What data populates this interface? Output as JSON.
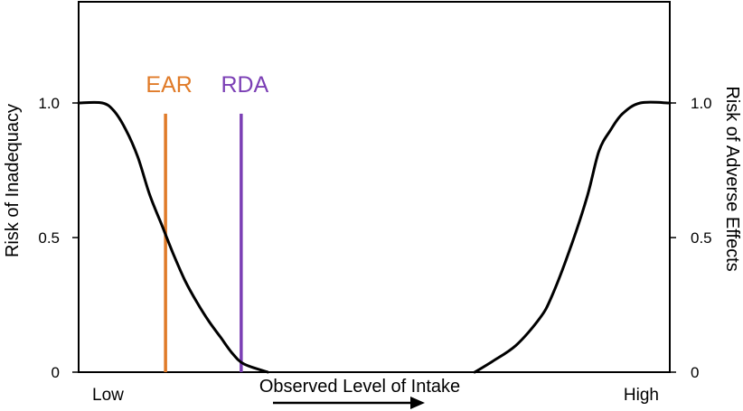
{
  "chart_data": {
    "type": "line",
    "title": "",
    "xlabel": "Observed Level of Intake",
    "x_endpoints": [
      "Low",
      "High"
    ],
    "ylabel_left": "Risk of Inadequacy",
    "ylabel_right": "Risk of Adverse Effects",
    "y_ticks": [
      "0",
      "0.5",
      "1.0"
    ],
    "ylim": [
      0,
      1.0
    ],
    "xlim": [
      0,
      1
    ],
    "grid": false,
    "legend": "none",
    "curve_color": "#000000",
    "series": [
      {
        "values": [
          {
            "x": 0.0,
            "y": 1.0
          },
          {
            "x": 0.04,
            "y": 1.0
          },
          {
            "x": 0.06,
            "y": 0.97
          },
          {
            "x": 0.08,
            "y": 0.9
          },
          {
            "x": 0.1,
            "y": 0.8
          },
          {
            "x": 0.12,
            "y": 0.66
          },
          {
            "x": 0.14,
            "y": 0.55
          },
          {
            "x": 0.16,
            "y": 0.44
          },
          {
            "x": 0.18,
            "y": 0.34
          },
          {
            "x": 0.2,
            "y": 0.26
          },
          {
            "x": 0.22,
            "y": 0.19
          },
          {
            "x": 0.24,
            "y": 0.13
          },
          {
            "x": 0.26,
            "y": 0.07
          },
          {
            "x": 0.28,
            "y": 0.03
          },
          {
            "x": 0.32,
            "y": 0.0
          }
        ]
      },
      {
        "values": [
          {
            "x": 0.67,
            "y": 0.0
          },
          {
            "x": 0.7,
            "y": 0.04
          },
          {
            "x": 0.74,
            "y": 0.1
          },
          {
            "x": 0.78,
            "y": 0.2
          },
          {
            "x": 0.8,
            "y": 0.28
          },
          {
            "x": 0.83,
            "y": 0.45
          },
          {
            "x": 0.86,
            "y": 0.65
          },
          {
            "x": 0.88,
            "y": 0.82
          },
          {
            "x": 0.9,
            "y": 0.9
          },
          {
            "x": 0.92,
            "y": 0.96
          },
          {
            "x": 0.95,
            "y": 1.0
          },
          {
            "x": 1.0,
            "y": 1.0
          }
        ]
      }
    ],
    "markers": [
      {
        "label": "EAR",
        "x": 0.147,
        "y_top": 0.96,
        "color": "#E07B29"
      },
      {
        "label": "RDA",
        "x": 0.275,
        "y_top": 0.96,
        "color": "#7B3FB5"
      }
    ],
    "direction_arrow": "right"
  }
}
